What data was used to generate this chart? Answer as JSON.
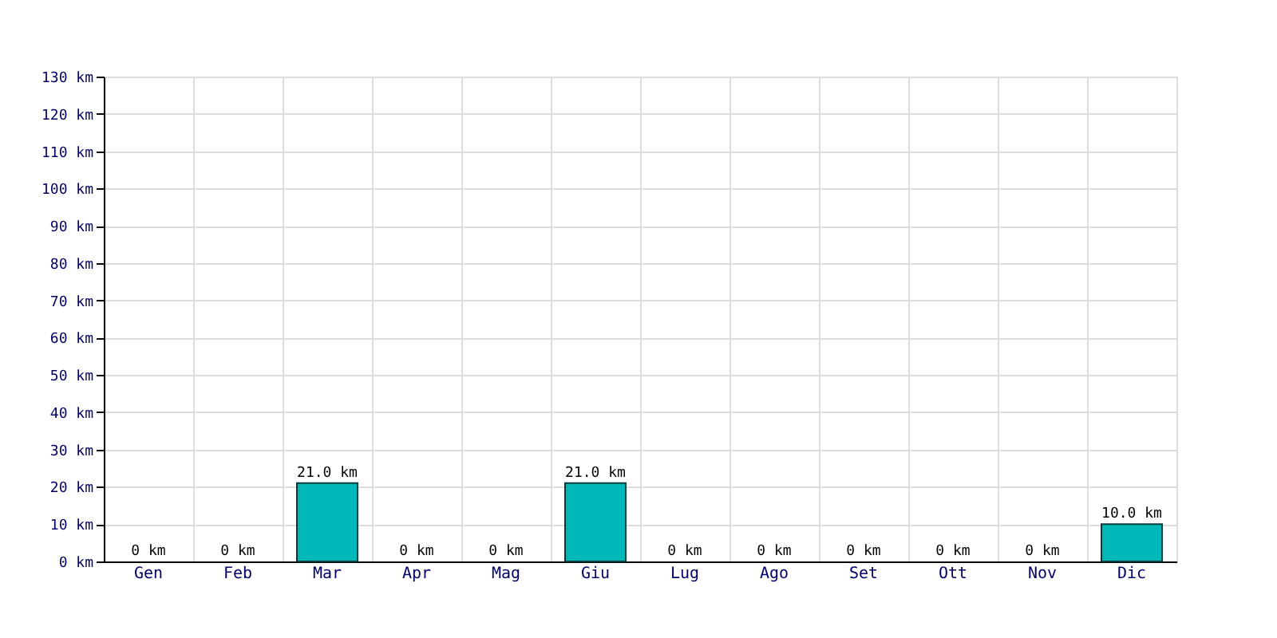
{
  "chart_data": {
    "type": "bar",
    "categories": [
      "Gen",
      "Feb",
      "Mar",
      "Apr",
      "Mag",
      "Giu",
      "Lug",
      "Ago",
      "Set",
      "Ott",
      "Nov",
      "Dic"
    ],
    "values": [
      0,
      0,
      21.0,
      0,
      0,
      21.0,
      0,
      0,
      0,
      0,
      0,
      10.0
    ],
    "value_labels": [
      "0 km",
      "0 km",
      "21.0 km",
      "0 km",
      "0 km",
      "21.0 km",
      "0 km",
      "0 km",
      "0 km",
      "0 km",
      "0 km",
      "10.0 km"
    ],
    "color": "#00b8b8",
    "ylim": [
      0,
      130
    ],
    "yticks": [
      {
        "value": 0,
        "label": "0 km"
      },
      {
        "value": 10,
        "label": "10 km"
      },
      {
        "value": 20,
        "label": "20 km"
      },
      {
        "value": 30,
        "label": "30 km"
      },
      {
        "value": 40,
        "label": "40 km"
      },
      {
        "value": 50,
        "label": "50 km"
      },
      {
        "value": 60,
        "label": "60 km"
      },
      {
        "value": 70,
        "label": "70 km"
      },
      {
        "value": 80,
        "label": "80 km"
      },
      {
        "value": 90,
        "label": "90 km"
      },
      {
        "value": 100,
        "label": "100 km"
      },
      {
        "value": 110,
        "label": "110 km"
      },
      {
        "value": 120,
        "label": "120 km"
      },
      {
        "value": 130,
        "label": "130 km"
      }
    ],
    "grid": true
  }
}
